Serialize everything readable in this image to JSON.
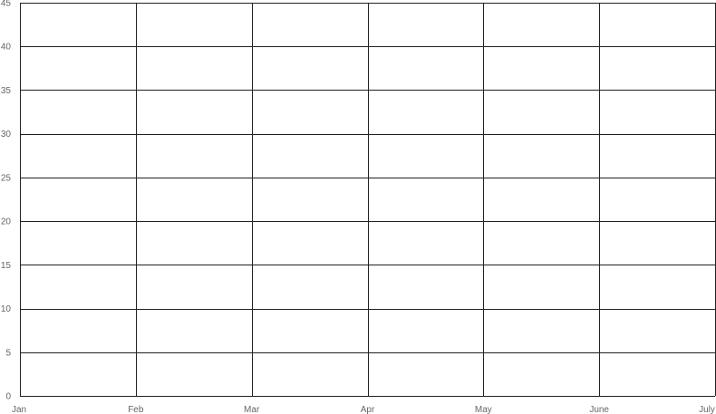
{
  "chart_data": {
    "type": "line",
    "title": "",
    "xlabel": "",
    "ylabel": "",
    "categories": [
      "Jan",
      "Feb",
      "Mar",
      "Apr",
      "May",
      "June",
      "July"
    ],
    "y_ticks": [
      0,
      5,
      10,
      15,
      20,
      25,
      30,
      35,
      40,
      45
    ],
    "ylim": [
      0,
      45
    ],
    "grid": true,
    "series": []
  },
  "colors": {
    "grid": "#222222",
    "tick_label": "#666666",
    "background": "#ffffff"
  }
}
